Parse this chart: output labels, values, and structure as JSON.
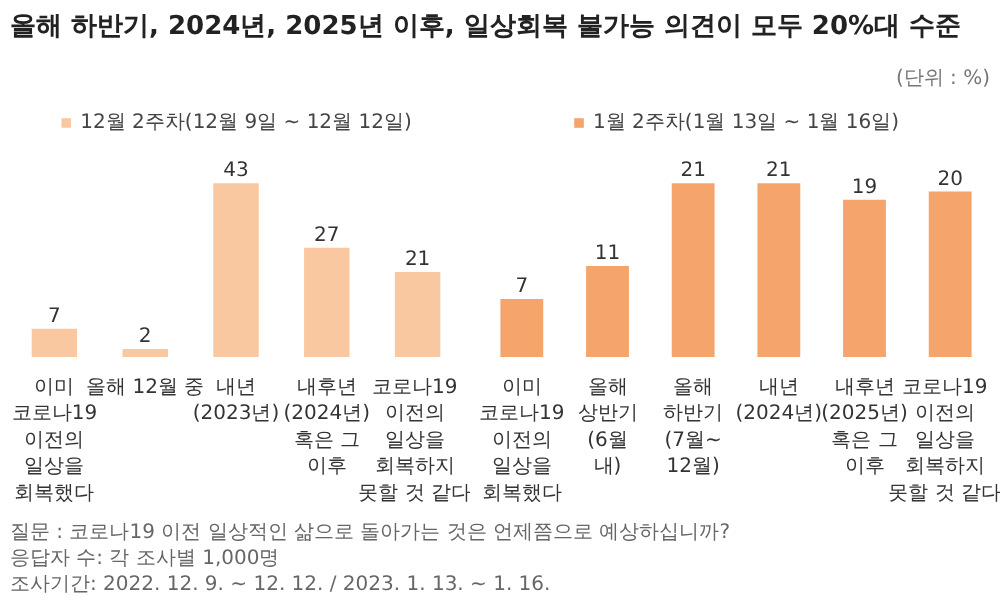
{
  "chart_data": [
    {
      "type": "bar",
      "title": "올해 하반기, 2024년, 2025년 이후, 일상회복 불가능 의견이 모두 20%대 수준",
      "categories": [
        "이미\n코로나19\n이전의\n일상을\n회복했다",
        "올해 12월 중",
        "내년\n(2023년)",
        "내후년\n(2024년)\n혹은 그\n이후",
        "코로나19\n이전의\n일상을\n회복하지\n못할 것 같다"
      ],
      "series": [
        {
          "name": "12월 2주차(12월 9일 ~ 12월 12일)",
          "color": "#f9c7a0",
          "values": [
            7,
            2,
            43,
            27,
            21
          ]
        }
      ],
      "data_labels": true,
      "legend": "top",
      "grid": false,
      "tick_labels": "x",
      "annotations": [
        "질문 : 코로나19 이전 일상적인 삶으로 돌아가는 것은 언제쯤으로 예상하십니까?",
        "응답자 수: 각 조사별 1,000명",
        "조사기간: 2022. 12. 9. ~ 12. 12.  / 2023. 1. 13. ~ 1. 16."
      ]
    },
    {
      "type": "bar",
      "categories": [
        "이미\n코로나19\n이전의\n일상을\n회복했다",
        "올해\n상반기\n(6월\n내)",
        "올해\n하반기\n(7월~\n12월)",
        "내년\n(2024년)",
        "내후년\n(2025년)\n혹은 그\n이후",
        "코로나19\n이전의\n일상을\n회복하지\n못할 것 같다"
      ],
      "series": [
        {
          "name": "1월 2주차(1월 13일 ~ 1월 16일)",
          "color": "#f5a46c",
          "values": [
            7,
            11,
            21,
            21,
            19,
            20
          ]
        }
      ],
      "data_labels": true,
      "legend": "top",
      "grid": false,
      "tick_labels": "x",
      "annotations": [
        "(단위 : %)"
      ]
    }
  ]
}
